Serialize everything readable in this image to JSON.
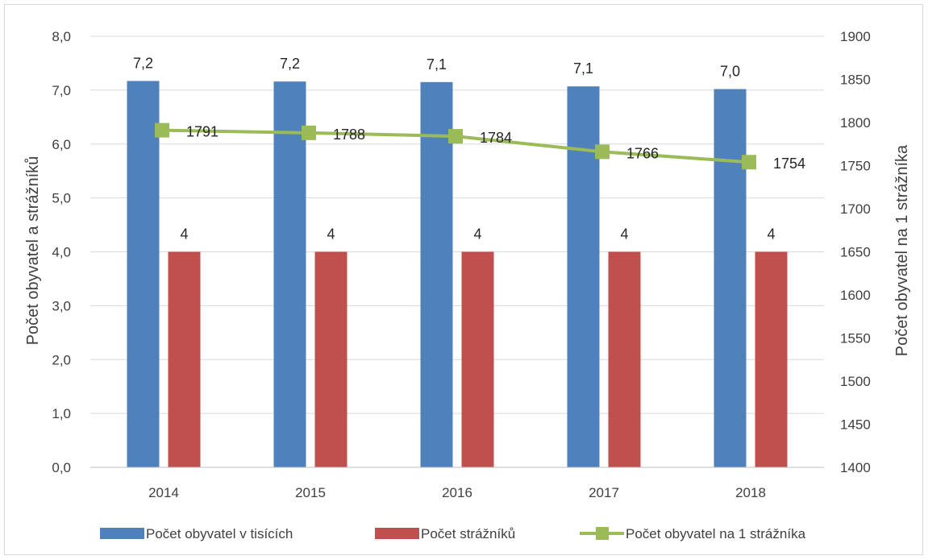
{
  "chart_data": {
    "type": "bar",
    "categories": [
      "2014",
      "2015",
      "2016",
      "2017",
      "2018"
    ],
    "series": [
      {
        "name": "Počet obyvatel v tisících",
        "type": "bar",
        "axis": "left",
        "values": [
          7.17,
          7.16,
          7.15,
          7.07,
          7.02
        ],
        "labels": [
          "7,2",
          "7,2",
          "7,1",
          "7,1",
          "7,0"
        ],
        "color": "#4f81bd"
      },
      {
        "name": "Počet strážníků",
        "type": "bar",
        "axis": "left",
        "values": [
          4,
          4,
          4,
          4,
          4
        ],
        "labels": [
          "4",
          "4",
          "4",
          "4",
          "4"
        ],
        "color": "#c0504d"
      },
      {
        "name": "Počet obyvatel na 1 strážníka",
        "type": "line",
        "axis": "right",
        "values": [
          1791,
          1788,
          1784,
          1766,
          1754
        ],
        "labels": [
          "1791",
          "1788",
          "1784",
          "1766",
          "1754"
        ],
        "color": "#9bbb59"
      }
    ],
    "ylabel": "Počet obyvatel a strážníků",
    "y2label": "Počet obyvatel na 1 strážníka",
    "ylim": [
      0,
      8
    ],
    "y2lim": [
      1400,
      1900
    ],
    "yticks": [
      "0,0",
      "1,0",
      "2,0",
      "3,0",
      "4,0",
      "5,0",
      "6,0",
      "7,0",
      "8,0"
    ],
    "y2ticks": [
      "1400",
      "1450",
      "1500",
      "1550",
      "1600",
      "1650",
      "1700",
      "1750",
      "1800",
      "1850",
      "1900"
    ],
    "grid": "horizontal",
    "legend": "bottom"
  }
}
